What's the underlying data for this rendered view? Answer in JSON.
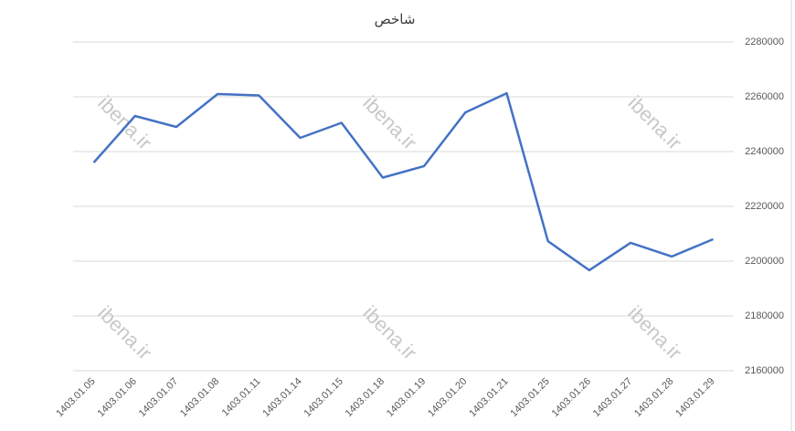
{
  "chart_data": {
    "type": "line",
    "title": "شاخص",
    "categories": [
      "1403.01.05",
      "1403.01.06",
      "1403.01.07",
      "1403.01.08",
      "1403.01.11",
      "1403.01.14",
      "1403.01.15",
      "1403.01.18",
      "1403.01.19",
      "1403.01.20",
      "1403.01.21",
      "1403.01.25",
      "1403.01.26",
      "1403.01.27",
      "1403.01.28",
      "1403.01.29"
    ],
    "series": [
      {
        "name": "شاخص",
        "color": "#4472c4",
        "values": [
          2236000,
          2253000,
          2249000,
          2261000,
          2260500,
          2245000,
          2250500,
          2230500,
          2234700,
          2254300,
          2261300,
          2207300,
          2196700,
          2206700,
          2201700,
          2208000
        ]
      }
    ],
    "ylim": [
      2160000,
      2280000
    ],
    "yticks": [
      2160000,
      2180000,
      2200000,
      2220000,
      2240000,
      2260000,
      2280000
    ],
    "grid": true,
    "watermark": "ibena.ir"
  }
}
